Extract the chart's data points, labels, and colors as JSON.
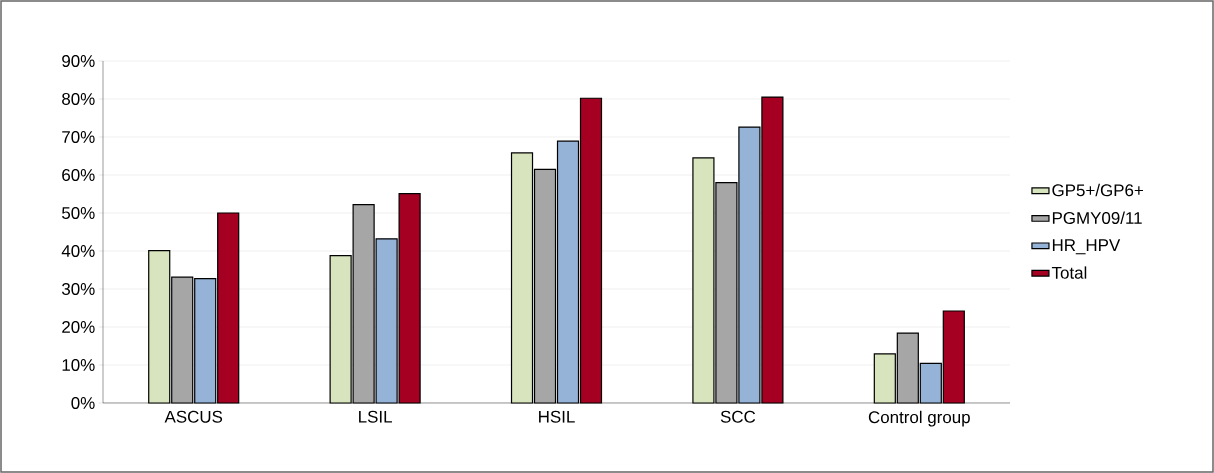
{
  "chart_data": {
    "type": "bar",
    "categories": [
      "ASCUS",
      "LSIL",
      "HSIL",
      "SCC",
      "Control group"
    ],
    "series": [
      {
        "name": "GP5+/GP6+",
        "color": "#d7e4bd",
        "values": [
          40.1,
          38.8,
          65.8,
          64.5,
          12.9
        ]
      },
      {
        "name": "PGMY09/11",
        "color": "#a6a6a6",
        "values": [
          33.1,
          52.2,
          61.5,
          58.0,
          18.4
        ]
      },
      {
        "name": "HR_HPV",
        "color": "#95b3d7",
        "values": [
          32.7,
          43.2,
          68.9,
          72.6,
          10.4
        ]
      },
      {
        "name": "Total",
        "color": "#a50021",
        "values": [
          50.0,
          55.1,
          80.2,
          80.5,
          24.2
        ]
      }
    ],
    "ylim": [
      0,
      90
    ],
    "yticks": [
      {
        "value": 0,
        "label": "0%"
      },
      {
        "value": 10,
        "label": "10%"
      },
      {
        "value": 20,
        "label": "20%"
      },
      {
        "value": 30,
        "label": "30%"
      },
      {
        "value": 40,
        "label": "40%"
      },
      {
        "value": 50,
        "label": "50%"
      },
      {
        "value": 60,
        "label": "60%"
      },
      {
        "value": 70,
        "label": "70%"
      },
      {
        "value": 80,
        "label": "80%"
      },
      {
        "value": 90,
        "label": "90%"
      }
    ],
    "grid": "y",
    "legend": "right"
  }
}
